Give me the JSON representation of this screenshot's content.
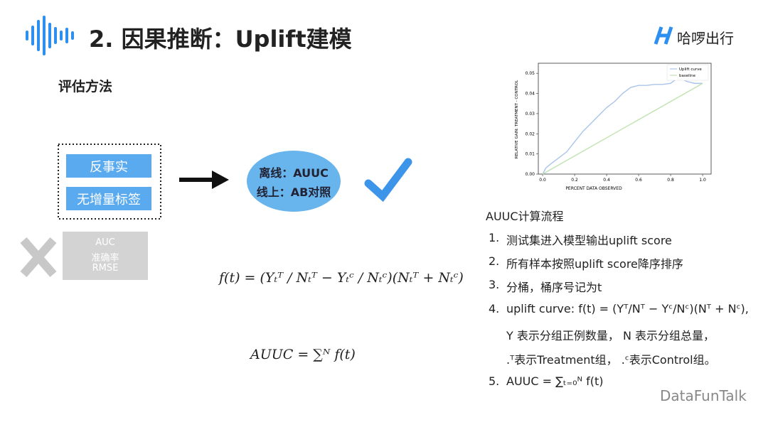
{
  "header": {
    "title": "2. 因果推断：Uplift建模",
    "logo": "哈啰出行"
  },
  "section_title": "评估方法",
  "problems": [
    "反事实",
    "无增量标签"
  ],
  "solution": [
    "离线：AUUC",
    "线上：AB对照"
  ],
  "rejected": [
    "AUC",
    "准确率",
    "RMSE"
  ],
  "formulas": [
    "f(t) = (Yₜᵀ / Nₜᵀ − Yₜᶜ / Nₜᶜ)(Nₜᵀ + Nₜᶜ)",
    "AUUC = ∑ᴺ f(t)"
  ],
  "chart_data": {
    "type": "line",
    "xlabel": "PERCENT DATA OBSERVED",
    "ylabel": "RELATIVE GAIN: TREATMENT - CONTROL",
    "xlim": [
      -0.027,
      1.053
    ],
    "ylim": [
      0,
      0.055
    ],
    "xticks": [
      {
        "value": 0,
        "label": "0.0"
      },
      {
        "value": 0.2,
        "label": "0.2"
      },
      {
        "value": 0.4,
        "label": "0.4"
      },
      {
        "value": 0.6,
        "label": "0.6"
      },
      {
        "value": 0.8,
        "label": "0.8"
      },
      {
        "value": 1,
        "label": "1.0"
      }
    ],
    "yticks": [
      {
        "value": 0,
        "label": "0.00"
      },
      {
        "value": 0.01,
        "label": "0.01"
      },
      {
        "value": 0.02,
        "label": "0.02"
      },
      {
        "value": 0.03,
        "label": "0.03"
      },
      {
        "value": 0.04,
        "label": "0.04"
      },
      {
        "value": 0.05,
        "label": "0.05"
      }
    ],
    "legend": "upper right",
    "series": [
      {
        "name": "Uplift curve",
        "color": "#a9c4ea",
        "x": [
          0,
          0.02,
          0.05,
          0.1,
          0.15,
          0.2,
          0.25,
          0.3,
          0.35,
          0.4,
          0.45,
          0.5,
          0.55,
          0.6,
          0.65,
          0.7,
          0.75,
          0.8,
          0.85,
          0.9,
          0.95,
          1.0
        ],
        "values": [
          0,
          0.003,
          0.005,
          0.008,
          0.011,
          0.016,
          0.021,
          0.025,
          0.029,
          0.033,
          0.036,
          0.04,
          0.043,
          0.044,
          0.044,
          0.0445,
          0.0445,
          0.045,
          0.048,
          0.046,
          0.045,
          0.045
        ]
      },
      {
        "name": "baseline",
        "color": "#bfe3b0",
        "x": [
          0,
          1
        ],
        "values": [
          0,
          0.045
        ]
      }
    ]
  },
  "steps_title": "AUUC计算流程",
  "steps": [
    {
      "number": "1.",
      "lines": [
        "测试集进入模型输出uplift score"
      ]
    },
    {
      "number": "2.",
      "lines": [
        "所有样本按照uplift score降序排序"
      ]
    },
    {
      "number": "3.",
      "lines": [
        "分桶，桶序号记为t"
      ]
    },
    {
      "number": "4.",
      "lines": [
        "uplift curve: f(t) = (Yᵀ/Nᵀ − Yᶜ/Nᶜ)(Nᵀ + Nᶜ),",
        "Y 表示分组正例数量， N 表示分组总量，",
        ".ᵀ表示Treatment组， .ᶜ表示Control组。"
      ]
    },
    {
      "number": "5.",
      "lines": [
        "AUUC = ∑ₜ₌₀ᴺ f(t)"
      ]
    }
  ],
  "footer": "DataFunTalk"
}
